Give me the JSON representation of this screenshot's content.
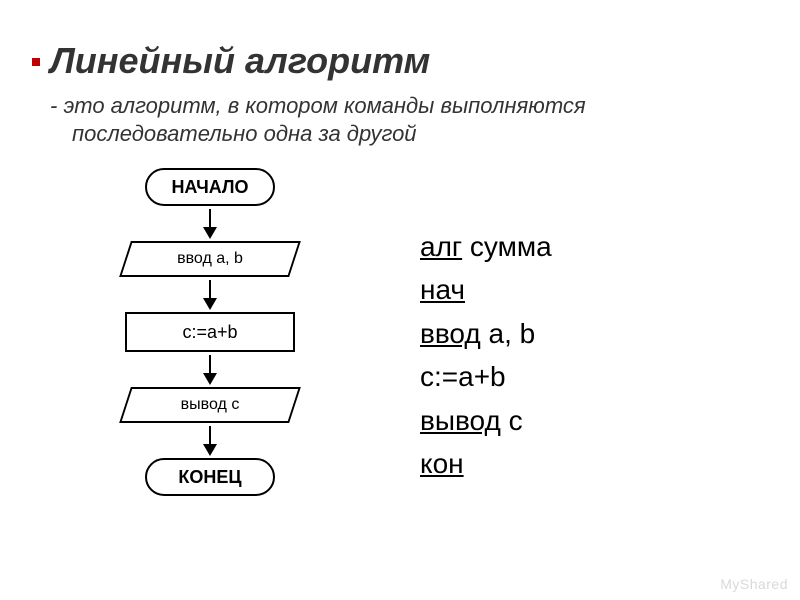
{
  "title": "Линейный алгоритм",
  "subtitle_line1": "- это алгоритм, в котором команды выполняются",
  "subtitle_line2": "последовательно одна за другой",
  "flowchart": {
    "type": "flowchart",
    "border_color": "#000000",
    "background_color": "#ffffff",
    "font_size": 18,
    "nodes": {
      "start": "НАЧАЛО",
      "input": "ввод a, b",
      "process": "c:=a+b",
      "output": "вывод с",
      "end": "КОНЕЦ"
    }
  },
  "pseudocode": {
    "font_size": 28,
    "text_color": "#000000",
    "lines": {
      "l1_kw": "алг",
      "l1_rest": " сумма",
      "l2_kw": "нач",
      "l3_kw": "ввод",
      "l3_rest": " a, b",
      "l4": "c:=a+b",
      "l5_kw": "вывод",
      "l5_rest": " с",
      "l6_kw": "кон"
    }
  },
  "watermark": "MyShared",
  "colors": {
    "bullet": "#c00000",
    "text": "#333333",
    "watermark": "#d9d9d9"
  }
}
